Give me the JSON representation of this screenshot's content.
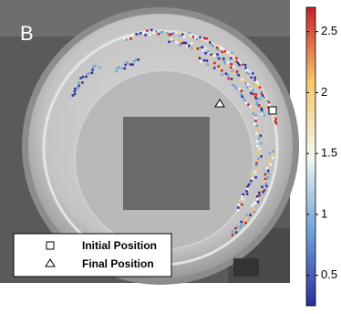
{
  "chart_data": {
    "type": "trajectory",
    "panel_label": "B",
    "legend": [
      "Initial Position",
      "Final Position"
    ],
    "colorbar": {
      "lim": [
        0.25,
        2.7
      ],
      "ticks": [
        0.5,
        1,
        1.5,
        2,
        2.5
      ],
      "colors": [
        "#2a2f9c",
        "#6fa3d8",
        "#f4f8f0",
        "#f7c66a",
        "#c8202a"
      ]
    }
  }
}
